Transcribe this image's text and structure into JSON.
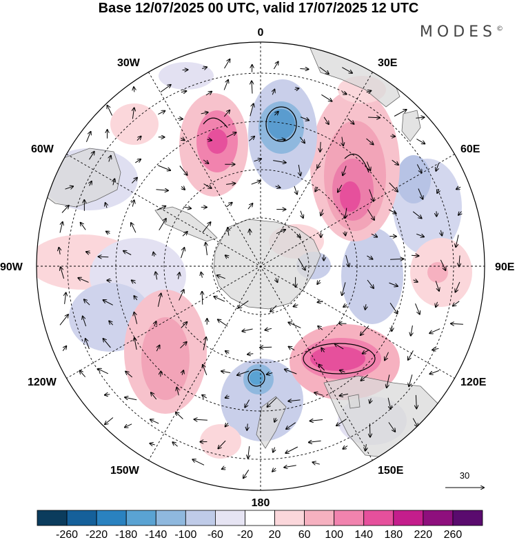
{
  "title": "Base 12/07/2025 00 UTC, valid 17/07/2025 12 UTC",
  "brand": "MODES",
  "brand_mark": "©",
  "longitude_labels": {
    "n": "0",
    "s": "180",
    "e": "90E",
    "w": "90W",
    "ne30": "30E",
    "ne60": "60E",
    "se120": "120E",
    "se150": "150E",
    "nw30": "30W",
    "nw60": "60W",
    "sw120": "120W",
    "sw150": "150W"
  },
  "reference_vector": "30",
  "colorbar": {
    "ticks": [
      "-260",
      "-220",
      "-180",
      "-140",
      "-100",
      "-60",
      "-20",
      "20",
      "60",
      "100",
      "140",
      "180",
      "220",
      "260"
    ],
    "colors": [
      "#0b3c5d",
      "#15609a",
      "#2a82c0",
      "#5aa3d3",
      "#8fb8de",
      "#bfcbe8",
      "#e6e4f3",
      "#ffffff",
      "#fbd7db",
      "#f6b1c0",
      "#f183ae",
      "#e6509c",
      "#c41e8c",
      "#8e0f7d",
      "#5a0b6e"
    ]
  },
  "anomalies": [
    {
      "name": "neg-centre-n",
      "color": "#5a9ccf",
      "lvl": "-180"
    },
    {
      "name": "pos-centre-ne",
      "color": "#e6509c",
      "lvl": "180"
    },
    {
      "name": "pos-centre-se",
      "color": "#e6509c",
      "lvl": "180"
    },
    {
      "name": "pos-centre-nw",
      "color": "#f183ae",
      "lvl": "140"
    },
    {
      "name": "neg-centre-s",
      "color": "#5a9ccf",
      "lvl": "-140"
    }
  ]
}
